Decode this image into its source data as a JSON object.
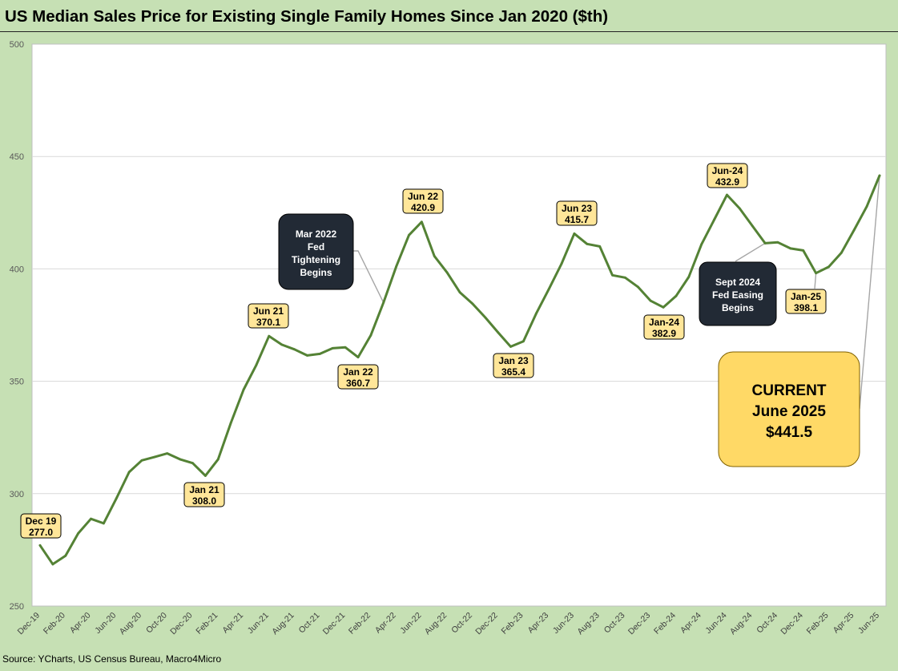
{
  "chart_data": {
    "type": "line",
    "title": "US Median Sales Price for Existing Single Family Homes Since Jan 2020 ($th)",
    "xlabel": "",
    "ylabel": "",
    "ylim": [
      250,
      500
    ],
    "yticks": [
      250,
      300,
      350,
      400,
      450,
      500
    ],
    "grid": true,
    "line_color": "#548235",
    "x": [
      "Dec-19",
      "Jan-20",
      "Feb-20",
      "Mar-20",
      "Apr-20",
      "May-20",
      "Jun-20",
      "Jul-20",
      "Aug-20",
      "Sep-20",
      "Oct-20",
      "Nov-20",
      "Dec-20",
      "Jan-21",
      "Feb-21",
      "Mar-21",
      "Apr-21",
      "May-21",
      "Jun-21",
      "Jul-21",
      "Aug-21",
      "Sep-21",
      "Oct-21",
      "Nov-21",
      "Dec-21",
      "Jan-22",
      "Feb-22",
      "Mar-22",
      "Apr-22",
      "May-22",
      "Jun-22",
      "Jul-22",
      "Aug-22",
      "Sep-22",
      "Oct-22",
      "Nov-22",
      "Dec-22",
      "Jan-23",
      "Feb-23",
      "Mar-23",
      "Apr-23",
      "May-23",
      "Jun-23",
      "Jul-23",
      "Aug-23",
      "Sep-23",
      "Oct-23",
      "Nov-23",
      "Dec-23",
      "Jan-24",
      "Feb-24",
      "Mar-24",
      "Apr-24",
      "May-24",
      "Jun-24",
      "Jul-24",
      "Aug-24",
      "Sep-24",
      "Oct-24",
      "Nov-24",
      "Dec-24",
      "Jan-25",
      "Feb-25",
      "Mar-25",
      "Apr-25",
      "May-25",
      "Jun-25"
    ],
    "xtick_labels": [
      "Dec-19",
      "Feb-20",
      "Apr-20",
      "Jun-20",
      "Aug-20",
      "Oct-20",
      "Dec-20",
      "Feb-21",
      "Apr-21",
      "Jun-21",
      "Aug-21",
      "Oct-21",
      "Dec-21",
      "Feb-22",
      "Apr-22",
      "Jun-22",
      "Aug-22",
      "Oct-22",
      "Dec-22",
      "Feb-23",
      "Apr-23",
      "Jun-23",
      "Aug-23",
      "Oct-23",
      "Dec-23",
      "Feb-24",
      "Apr-24",
      "Jun-24",
      "Aug-24",
      "Oct-24",
      "Dec-24",
      "Feb-25",
      "Apr-25",
      "Jun-25"
    ],
    "series": [
      {
        "name": "Median Sales Price ($th)",
        "values": [
          277.0,
          268.6,
          272.4,
          282.3,
          288.8,
          286.8,
          297.9,
          309.6,
          314.8,
          316.3,
          317.9,
          315.3,
          313.6,
          308.0,
          315.3,
          331.5,
          346.3,
          357.2,
          370.1,
          366.3,
          364.2,
          361.5,
          362.2,
          364.7,
          365.1,
          360.7,
          370.4,
          385.0,
          401.0,
          415.0,
          420.9,
          405.7,
          398.4,
          389.6,
          384.5,
          378.4,
          371.8,
          365.4,
          367.8,
          380.1,
          391.0,
          402.3,
          415.7,
          411.1,
          410.0,
          397.2,
          396.1,
          392.0,
          385.8,
          382.9,
          387.9,
          396.4,
          410.9,
          421.9,
          432.9,
          426.9,
          419.1,
          411.4,
          411.8,
          409.1,
          408.2,
          398.1,
          400.9,
          407.2,
          417.3,
          427.8,
          441.5
        ]
      }
    ],
    "labels": [
      {
        "month": "Dec-19",
        "name": "Dec 19",
        "value": "277.0"
      },
      {
        "month": "Jan-21",
        "name": "Jan 21",
        "value": "308.0"
      },
      {
        "month": "Jun-21",
        "name": "Jun 21",
        "value": "370.1"
      },
      {
        "month": "Jan-22",
        "name": "Jan 22",
        "value": "360.7"
      },
      {
        "month": "Jun-22",
        "name": "Jun 22",
        "value": "420.9"
      },
      {
        "month": "Jan-23",
        "name": "Jan 23",
        "value": "365.4"
      },
      {
        "month": "Jun-23",
        "name": "Jun 23",
        "value": "415.7"
      },
      {
        "month": "Jan-24",
        "name": "Jan-24",
        "value": "382.9"
      },
      {
        "month": "Jun-24",
        "name": "Jun-24",
        "value": "432.9"
      },
      {
        "month": "Jan-25",
        "name": "Jan-25",
        "value": "398.1"
      }
    ],
    "annotations": [
      {
        "lines": [
          "Mar 2022",
          "Fed",
          "Tightening",
          "Begins"
        ],
        "points_to": "Mar-22"
      },
      {
        "lines": [
          "Sept 2024",
          "Fed Easing",
          "Begins"
        ],
        "points_to": "Sep-24"
      },
      {
        "lines": [
          "CURRENT",
          "June 2025",
          "$441.5"
        ],
        "points_to": "Jun-25"
      }
    ]
  },
  "source": "Source: YCharts, US Census Bureau, Macro4Micro"
}
